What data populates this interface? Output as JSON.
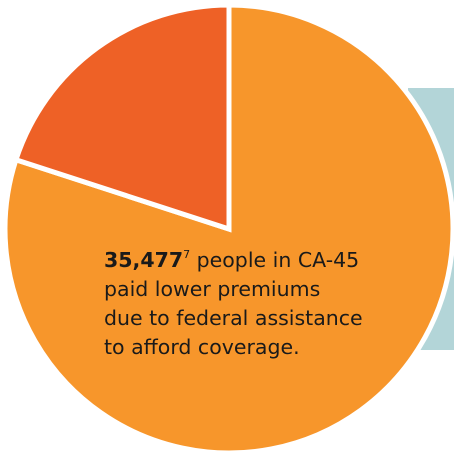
{
  "chart_data": {
    "type": "pie",
    "slices": [
      {
        "label": "paid lower premiums due to federal assistance",
        "value": 80,
        "color": "#F7962B"
      },
      {
        "label": "",
        "value": 20,
        "color": "#EE6126"
      }
    ],
    "annotation": {
      "number": "35,477",
      "footnote": "7",
      "lines": [
        "people in CA-45",
        "paid lower premiums",
        "due to federal assistance",
        "to afford coverage."
      ]
    }
  },
  "colors": {
    "background": "#FFFFFF",
    "panel": "#B3D5D8",
    "separator": "#FFFFFF"
  }
}
